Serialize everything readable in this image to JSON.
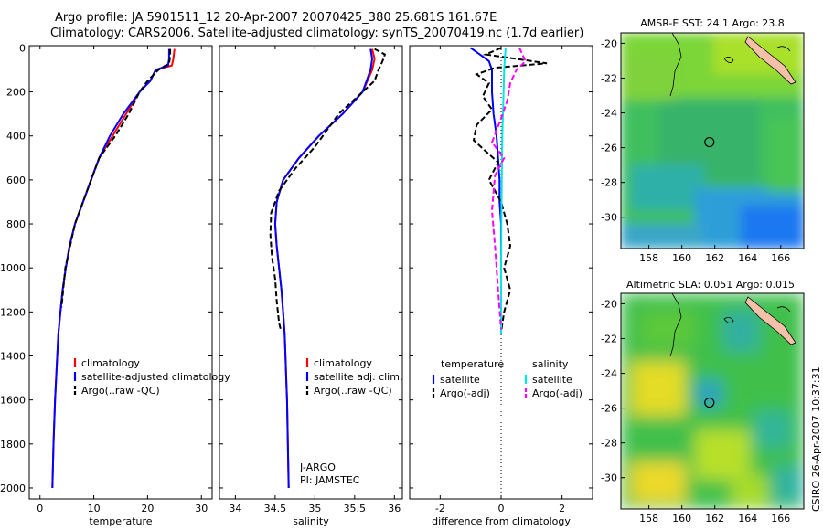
{
  "title_line1": "Argo profile: JA 5901511_12 20-Apr-2007 20070425_380 25.681S 161.67E",
  "title_line2": "Climatology: CARS2006. Satellite-adjusted climatology: synTS_20070419.nc (1.7d earlier)",
  "credit": "CSIRO 26-Apr-2007 10:37:31",
  "colors": {
    "climatology": "#ff0000",
    "satellite": "#0000ff",
    "argo": "#000000",
    "salinity_sat": "#00e5e5",
    "argo_sal": "#ff00ff"
  },
  "chart_data": [
    {
      "type": "line",
      "xlabel": "temperature",
      "ylim": [
        2050,
        -10
      ],
      "xlim": [
        -2,
        32
      ],
      "xticks": [
        "0",
        "10",
        "20",
        "30"
      ],
      "yticks": [
        "0",
        "200",
        "400",
        "600",
        "800",
        "1000",
        "1200",
        "1400",
        "1600",
        "1800",
        "2000"
      ],
      "legend": [
        "climatology",
        "satellite-adjusted climatology",
        "Argo(..raw -QC)"
      ],
      "series": [
        {
          "name": "climatology",
          "color": "#ff0000",
          "dash": "none",
          "x": [
            25.0,
            24.8,
            24.5,
            21.5,
            20.5,
            18.5,
            16.0,
            13.5,
            11.0,
            9.5,
            8.0,
            6.5,
            5.5,
            4.8,
            4.2,
            3.8,
            3.4,
            3.2,
            3.0,
            2.8,
            2.5,
            2.3
          ],
          "y": [
            5,
            50,
            80,
            100,
            150,
            200,
            300,
            400,
            500,
            600,
            700,
            800,
            900,
            1000,
            1100,
            1200,
            1300,
            1400,
            1500,
            1600,
            1800,
            2000
          ]
        },
        {
          "name": "satellite-adjusted climatology",
          "color": "#0000ff",
          "dash": "none",
          "x": [
            24.0,
            24.0,
            23.8,
            21.5,
            20.5,
            18.5,
            15.5,
            13.0,
            11.0,
            9.5,
            8.0,
            6.5,
            5.5,
            4.8,
            4.2,
            3.8,
            3.4,
            3.2,
            3.0,
            2.8,
            2.5,
            2.3
          ],
          "y": [
            5,
            50,
            80,
            100,
            150,
            200,
            300,
            400,
            500,
            600,
            700,
            800,
            900,
            1000,
            1100,
            1200,
            1300,
            1400,
            1500,
            1600,
            1800,
            2000
          ]
        },
        {
          "name": "Argo(..raw -QC)",
          "color": "#000000",
          "dash": "6,3",
          "x": [
            24.2,
            24.2,
            24.0,
            22.0,
            20.0,
            18.5,
            16.5,
            14.0,
            11.0,
            9.5,
            8.0,
            6.5,
            5.6,
            4.7,
            4.3,
            4.0
          ],
          "y": [
            5,
            40,
            70,
            100,
            150,
            200,
            300,
            400,
            500,
            600,
            700,
            800,
            900,
            1000,
            1100,
            1180
          ]
        }
      ]
    },
    {
      "type": "line",
      "xlabel": "salinity",
      "ylim": [
        2050,
        -10
      ],
      "xlim": [
        33.8,
        36.1
      ],
      "xticks": [
        "34",
        "34.5",
        "35",
        "35.5",
        "36"
      ],
      "legend": [
        "climatology",
        "satellite adj. clim.",
        "Argo(..raw -QC)"
      ],
      "annotations": [
        "J-ARGO",
        "PI: JAMSTEC"
      ],
      "series": [
        {
          "name": "climatology",
          "color": "#ff0000",
          "dash": "none",
          "x": [
            35.72,
            35.75,
            35.72,
            35.6,
            35.35,
            35.05,
            34.8,
            34.6,
            34.52,
            34.5,
            34.52,
            34.55,
            34.58,
            34.6,
            34.62,
            34.63,
            34.64,
            34.65,
            34.66,
            34.67
          ],
          "y": [
            5,
            50,
            100,
            200,
            300,
            400,
            500,
            600,
            700,
            800,
            900,
            1000,
            1100,
            1200,
            1300,
            1400,
            1500,
            1600,
            1800,
            2000
          ]
        },
        {
          "name": "satellite adj. clim.",
          "color": "#0000ff",
          "dash": "none",
          "x": [
            35.7,
            35.72,
            35.7,
            35.6,
            35.35,
            35.05,
            34.8,
            34.6,
            34.52,
            34.5,
            34.52,
            34.55,
            34.58,
            34.6,
            34.62,
            34.63,
            34.64,
            34.65,
            34.66,
            34.67
          ],
          "y": [
            5,
            50,
            100,
            200,
            300,
            400,
            500,
            600,
            700,
            800,
            900,
            1000,
            1100,
            1200,
            1300,
            1400,
            1500,
            1600,
            1800,
            2000
          ]
        },
        {
          "name": "Argo(..raw -QC)",
          "color": "#000000",
          "dash": "6,3",
          "x": [
            35.75,
            35.88,
            35.85,
            35.8,
            35.75,
            35.6,
            35.3,
            35.0,
            34.75,
            34.55,
            34.45,
            34.44,
            34.46,
            34.5,
            34.52,
            34.55,
            34.57
          ],
          "y": [
            5,
            30,
            60,
            100,
            150,
            200,
            300,
            450,
            550,
            650,
            750,
            850,
            950,
            1050,
            1150,
            1250,
            1280
          ]
        }
      ]
    },
    {
      "type": "line",
      "xlabel": "difference from climatology",
      "ylim": [
        2050,
        -10
      ],
      "xlim": [
        -3,
        3
      ],
      "xticks": [
        "-2",
        "0",
        "2"
      ],
      "legend_titles": [
        "temperature",
        "salinity"
      ],
      "legend": [
        "satellite",
        "Argo(-adj)",
        "satellite",
        "Argo(-adj)"
      ],
      "series": [
        {
          "name": "satellite",
          "color": "#0000ff",
          "dash": "none",
          "x": [
            -1.0,
            -0.7,
            -0.4,
            -0.3,
            -0.3,
            -0.25,
            -0.15,
            -0.1,
            -0.05,
            -0.05,
            0.0,
            0.0,
            0.0,
            0.0
          ],
          "y": [
            0,
            30,
            60,
            100,
            200,
            300,
            400,
            500,
            600,
            700,
            800,
            1000,
            1200,
            1300
          ]
        },
        {
          "name": "Argo(-adj)",
          "color": "#000000",
          "dash": "6,3",
          "x": [
            0.0,
            -0.5,
            1.5,
            -0.2,
            -0.8,
            -0.4,
            -0.6,
            -0.3,
            -0.8,
            -0.9,
            -0.5,
            -0.1,
            -0.4,
            0.0,
            0.2,
            0.3,
            0.1,
            0.3,
            0.1,
            0.0
          ],
          "y": [
            0,
            30,
            70,
            90,
            120,
            160,
            220,
            280,
            350,
            420,
            470,
            520,
            600,
            700,
            800,
            900,
            1000,
            1100,
            1200,
            1290
          ]
        },
        {
          "name": "satellite",
          "color": "#00e5e5",
          "dash": "none",
          "x": [
            0.15,
            0.12,
            0.1,
            0.08,
            0.06,
            0.04,
            0.03,
            0.02,
            0.01,
            0.0,
            0.0,
            0.0
          ],
          "y": [
            0,
            50,
            100,
            200,
            300,
            400,
            500,
            600,
            800,
            1000,
            1200,
            1300
          ]
        },
        {
          "name": "Argo(-adj)",
          "color": "#ff00ff",
          "dash": "6,3",
          "x": [
            0.6,
            0.8,
            0.5,
            0.3,
            0.2,
            0.0,
            -0.3,
            0.1,
            -0.2,
            -0.3,
            -0.2,
            -0.1,
            0.0
          ],
          "y": [
            0,
            60,
            100,
            160,
            240,
            320,
            430,
            500,
            580,
            740,
            900,
            1100,
            1280
          ]
        }
      ]
    },
    {
      "type": "heatmap",
      "title": "AMSR-E SST: 24.1  Argo: 23.8",
      "xticks": [
        "158",
        "160",
        "162",
        "164",
        "166"
      ],
      "yticks": [
        "-20",
        "-22",
        "-24",
        "-26",
        "-28",
        "-30"
      ],
      "xlim": [
        156.3,
        167.4
      ],
      "ylim": [
        -31.8,
        -19.4
      ],
      "marker": {
        "x": 161.67,
        "y": -25.681
      }
    },
    {
      "type": "heatmap",
      "title": "Altimetric SLA: 0.051  Argo: 0.015",
      "xticks": [
        "158",
        "160",
        "162",
        "164",
        "166"
      ],
      "yticks": [
        "-20",
        "-22",
        "-24",
        "-26",
        "-28",
        "-30"
      ],
      "xlim": [
        156.3,
        167.4
      ],
      "ylim": [
        -31.8,
        -19.4
      ],
      "marker": {
        "x": 161.67,
        "y": -25.681
      }
    }
  ]
}
